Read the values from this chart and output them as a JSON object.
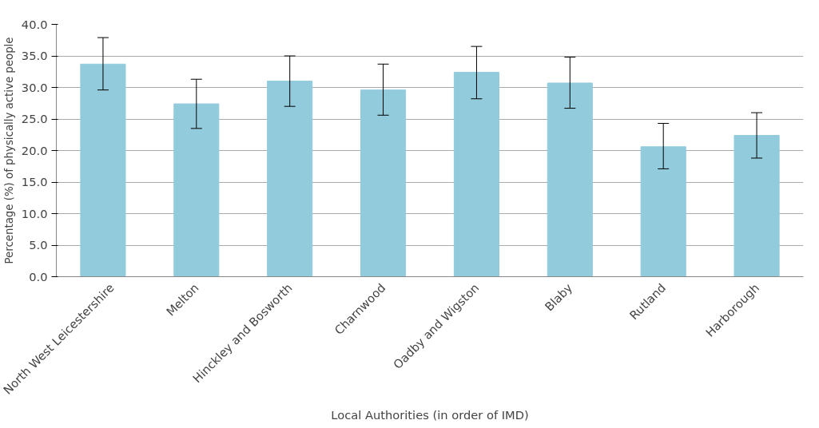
{
  "chart_data": {
    "type": "bar",
    "xlabel": "Local Authorities (in order of IMD)",
    "ylabel": "Percentage (%) of physically active people",
    "categories": [
      "North West Leicestershire",
      "Melton",
      "Hinckley and Bosworth",
      "Charnwood",
      "Oadby and Wigston",
      "Blaby",
      "Rutland",
      "Harborough"
    ],
    "values": [
      33.7,
      27.4,
      31.0,
      29.6,
      32.4,
      30.7,
      20.6,
      22.4
    ],
    "errors": [
      [
        29.6,
        37.9
      ],
      [
        23.5,
        31.3
      ],
      [
        27.0,
        35.0
      ],
      [
        25.6,
        33.7
      ],
      [
        28.2,
        36.5
      ],
      [
        26.7,
        34.8
      ],
      [
        17.1,
        24.3
      ],
      [
        18.8,
        26.0
      ]
    ],
    "color": "#92cbdc",
    "ylim": [
      0,
      40
    ],
    "yticks": [
      {
        "value": 0,
        "label": "0.0"
      },
      {
        "value": 5,
        "label": "5.0"
      },
      {
        "value": 10,
        "label": "10.0"
      },
      {
        "value": 15,
        "label": "15.0"
      },
      {
        "value": 20,
        "label": "20.0"
      },
      {
        "value": 25,
        "label": "25.0"
      },
      {
        "value": 30,
        "label": "30.0"
      },
      {
        "value": 35,
        "label": "35.0"
      },
      {
        "value": 40,
        "label": "40.0"
      }
    ],
    "grid": "y"
  }
}
